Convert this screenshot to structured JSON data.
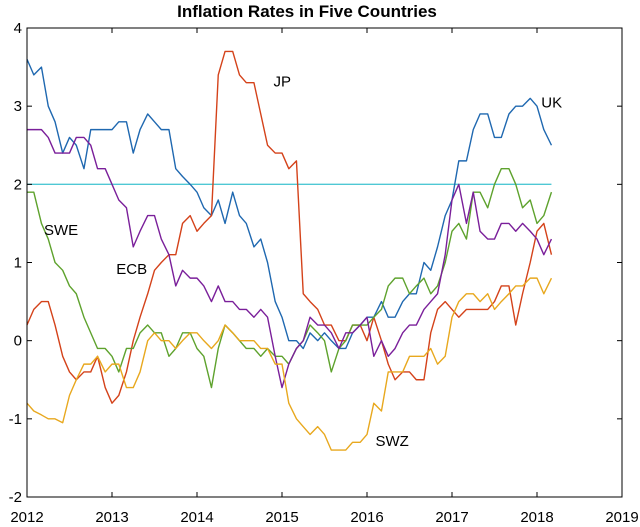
{
  "chart_data": {
    "type": "line",
    "title": "Inflation Rates in Five Countries",
    "xlabel": "",
    "ylabel": "",
    "xlim": [
      2012,
      2019
    ],
    "ylim": [
      -2,
      4
    ],
    "xticks": [
      2012,
      2013,
      2014,
      2015,
      2016,
      2017,
      2018,
      2019
    ],
    "yticks": [
      -2,
      -1,
      0,
      1,
      2,
      3,
      4
    ],
    "grid": false,
    "reference_line": {
      "y": 2,
      "color": "#4fc8d4"
    },
    "series": [
      {
        "name": "UK",
        "color": "#1f68b0",
        "label_at": [
          2018.05,
          2.98
        ],
        "x": [
          2012.0,
          2012.08,
          2012.17,
          2012.25,
          2012.33,
          2012.42,
          2012.5,
          2012.58,
          2012.67,
          2012.75,
          2012.83,
          2012.92,
          2013.0,
          2013.08,
          2013.17,
          2013.25,
          2013.33,
          2013.42,
          2013.5,
          2013.58,
          2013.67,
          2013.75,
          2013.83,
          2013.92,
          2014.0,
          2014.08,
          2014.17,
          2014.25,
          2014.33,
          2014.42,
          2014.5,
          2014.58,
          2014.67,
          2014.75,
          2014.83,
          2014.92,
          2015.0,
          2015.08,
          2015.17,
          2015.25,
          2015.33,
          2015.42,
          2015.5,
          2015.58,
          2015.67,
          2015.75,
          2015.83,
          2015.92,
          2016.0,
          2016.08,
          2016.17,
          2016.25,
          2016.33,
          2016.42,
          2016.5,
          2016.58,
          2016.67,
          2016.75,
          2016.83,
          2016.92,
          2017.0,
          2017.08,
          2017.17,
          2017.25,
          2017.33,
          2017.42,
          2017.5,
          2017.58,
          2017.67,
          2017.75,
          2017.83,
          2017.92,
          2018.0,
          2018.08,
          2018.17
        ],
        "values": [
          3.6,
          3.4,
          3.5,
          3.0,
          2.8,
          2.4,
          2.6,
          2.5,
          2.2,
          2.7,
          2.7,
          2.7,
          2.7,
          2.8,
          2.8,
          2.4,
          2.7,
          2.9,
          2.8,
          2.7,
          2.7,
          2.2,
          2.1,
          2.0,
          1.9,
          1.7,
          1.6,
          1.8,
          1.5,
          1.9,
          1.6,
          1.5,
          1.2,
          1.3,
          1.0,
          0.5,
          0.3,
          0.0,
          0.0,
          -0.1,
          0.1,
          0.0,
          0.1,
          0.0,
          -0.1,
          -0.1,
          0.1,
          0.2,
          0.3,
          0.3,
          0.5,
          0.3,
          0.3,
          0.5,
          0.6,
          0.6,
          1.0,
          0.9,
          1.2,
          1.6,
          1.8,
          2.3,
          2.3,
          2.7,
          2.9,
          2.9,
          2.6,
          2.6,
          2.9,
          3.0,
          3.0,
          3.1,
          3.0,
          2.7,
          2.5
        ]
      },
      {
        "name": "JP",
        "color": "#d4421a",
        "label_at": [
          2014.9,
          3.25
        ],
        "x": [
          2012.0,
          2012.08,
          2012.17,
          2012.25,
          2012.33,
          2012.42,
          2012.5,
          2012.58,
          2012.67,
          2012.75,
          2012.83,
          2012.92,
          2013.0,
          2013.08,
          2013.17,
          2013.25,
          2013.33,
          2013.42,
          2013.5,
          2013.58,
          2013.67,
          2013.75,
          2013.83,
          2013.92,
          2014.0,
          2014.08,
          2014.17,
          2014.25,
          2014.33,
          2014.42,
          2014.5,
          2014.58,
          2014.67,
          2014.75,
          2014.83,
          2014.92,
          2015.0,
          2015.08,
          2015.17,
          2015.25,
          2015.33,
          2015.42,
          2015.5,
          2015.58,
          2015.67,
          2015.75,
          2015.83,
          2015.92,
          2016.0,
          2016.08,
          2016.17,
          2016.25,
          2016.33,
          2016.42,
          2016.5,
          2016.58,
          2016.67,
          2016.75,
          2016.83,
          2016.92,
          2017.0,
          2017.08,
          2017.17,
          2017.25,
          2017.33,
          2017.42,
          2017.5,
          2017.58,
          2017.67,
          2017.75,
          2017.83,
          2017.92,
          2018.0,
          2018.08,
          2018.17
        ],
        "values": [
          0.2,
          0.4,
          0.5,
          0.5,
          0.2,
          -0.2,
          -0.4,
          -0.5,
          -0.4,
          -0.4,
          -0.2,
          -0.6,
          -0.8,
          -0.7,
          -0.4,
          0.0,
          0.3,
          0.6,
          0.9,
          1.0,
          1.1,
          1.1,
          1.5,
          1.6,
          1.4,
          1.5,
          1.6,
          3.4,
          3.7,
          3.7,
          3.4,
          3.3,
          3.3,
          2.9,
          2.5,
          2.4,
          2.4,
          2.2,
          2.3,
          0.6,
          0.5,
          0.4,
          0.2,
          0.2,
          0.0,
          0.0,
          0.2,
          0.2,
          0.0,
          0.3,
          0.0,
          -0.3,
          -0.5,
          -0.4,
          -0.4,
          -0.5,
          -0.5,
          0.1,
          0.4,
          0.5,
          0.4,
          0.3,
          0.4,
          0.4,
          0.4,
          0.4,
          0.5,
          0.7,
          0.7,
          0.2,
          0.6,
          1.0,
          1.4,
          1.5,
          1.1
        ]
      },
      {
        "name": "SWE",
        "color": "#5ea22d",
        "label_at": [
          2012.2,
          1.35
        ],
        "x": [
          2012.0,
          2012.08,
          2012.17,
          2012.25,
          2012.33,
          2012.42,
          2012.5,
          2012.58,
          2012.67,
          2012.75,
          2012.83,
          2012.92,
          2013.0,
          2013.08,
          2013.17,
          2013.25,
          2013.33,
          2013.42,
          2013.5,
          2013.58,
          2013.67,
          2013.75,
          2013.83,
          2013.92,
          2014.0,
          2014.08,
          2014.17,
          2014.25,
          2014.33,
          2014.42,
          2014.5,
          2014.58,
          2014.67,
          2014.75,
          2014.83,
          2014.92,
          2015.0,
          2015.08,
          2015.17,
          2015.25,
          2015.33,
          2015.42,
          2015.5,
          2015.58,
          2015.67,
          2015.75,
          2015.83,
          2015.92,
          2016.0,
          2016.08,
          2016.17,
          2016.25,
          2016.33,
          2016.42,
          2016.5,
          2016.58,
          2016.67,
          2016.75,
          2016.83,
          2016.92,
          2017.0,
          2017.08,
          2017.17,
          2017.25,
          2017.33,
          2017.42,
          2017.5,
          2017.58,
          2017.67,
          2017.75,
          2017.83,
          2017.92,
          2018.0,
          2018.08,
          2018.17
        ],
        "values": [
          1.9,
          1.9,
          1.5,
          1.3,
          1.0,
          0.9,
          0.7,
          0.6,
          0.3,
          0.1,
          -0.1,
          -0.1,
          -0.2,
          -0.4,
          -0.1,
          -0.1,
          0.1,
          0.2,
          0.1,
          0.1,
          -0.2,
          -0.1,
          0.1,
          0.1,
          -0.1,
          -0.2,
          -0.6,
          -0.1,
          0.2,
          0.1,
          0.0,
          -0.1,
          -0.1,
          -0.2,
          -0.1,
          -0.2,
          -0.2,
          -0.3,
          -0.1,
          0.0,
          0.2,
          0.1,
          0.0,
          -0.4,
          -0.1,
          0.0,
          0.2,
          0.2,
          0.2,
          0.3,
          0.4,
          0.7,
          0.8,
          0.8,
          0.6,
          0.7,
          0.8,
          0.6,
          0.7,
          1.0,
          1.4,
          1.5,
          1.3,
          1.9,
          1.9,
          1.7,
          2.0,
          2.2,
          2.2,
          2.0,
          1.7,
          1.8,
          1.5,
          1.6,
          1.9
        ]
      },
      {
        "name": "ECB",
        "color": "#7a1f9a",
        "label_at": [
          2013.05,
          0.85
        ],
        "x": [
          2012.0,
          2012.08,
          2012.17,
          2012.25,
          2012.33,
          2012.42,
          2012.5,
          2012.58,
          2012.67,
          2012.75,
          2012.83,
          2012.92,
          2013.0,
          2013.08,
          2013.17,
          2013.25,
          2013.33,
          2013.42,
          2013.5,
          2013.58,
          2013.67,
          2013.75,
          2013.83,
          2013.92,
          2014.0,
          2014.08,
          2014.17,
          2014.25,
          2014.33,
          2014.42,
          2014.5,
          2014.58,
          2014.67,
          2014.75,
          2014.83,
          2014.92,
          2015.0,
          2015.08,
          2015.17,
          2015.25,
          2015.33,
          2015.42,
          2015.5,
          2015.58,
          2015.67,
          2015.75,
          2015.83,
          2015.92,
          2016.0,
          2016.08,
          2016.17,
          2016.25,
          2016.33,
          2016.42,
          2016.5,
          2016.58,
          2016.67,
          2016.75,
          2016.83,
          2016.92,
          2017.0,
          2017.08,
          2017.17,
          2017.25,
          2017.33,
          2017.42,
          2017.5,
          2017.58,
          2017.67,
          2017.75,
          2017.83,
          2017.92,
          2018.0,
          2018.08,
          2018.17
        ],
        "values": [
          2.7,
          2.7,
          2.7,
          2.6,
          2.4,
          2.4,
          2.4,
          2.6,
          2.6,
          2.5,
          2.2,
          2.2,
          2.0,
          1.8,
          1.7,
          1.2,
          1.4,
          1.6,
          1.6,
          1.3,
          1.1,
          0.7,
          0.9,
          0.8,
          0.8,
          0.7,
          0.5,
          0.7,
          0.5,
          0.5,
          0.4,
          0.4,
          0.3,
          0.4,
          0.3,
          -0.2,
          -0.6,
          -0.3,
          -0.1,
          0.0,
          0.3,
          0.2,
          0.2,
          0.1,
          -0.1,
          0.1,
          0.1,
          0.2,
          0.3,
          -0.2,
          0.0,
          -0.2,
          -0.1,
          0.1,
          0.2,
          0.2,
          0.4,
          0.5,
          0.6,
          1.1,
          1.8,
          2.0,
          1.5,
          1.9,
          1.4,
          1.3,
          1.3,
          1.5,
          1.5,
          1.4,
          1.5,
          1.4,
          1.3,
          1.1,
          1.3
        ]
      },
      {
        "name": "SWZ",
        "color": "#e8a81e",
        "label_at": [
          2016.1,
          -1.35
        ],
        "x": [
          2012.0,
          2012.08,
          2012.17,
          2012.25,
          2012.33,
          2012.42,
          2012.5,
          2012.58,
          2012.67,
          2012.75,
          2012.83,
          2012.92,
          2013.0,
          2013.08,
          2013.17,
          2013.25,
          2013.33,
          2013.42,
          2013.5,
          2013.58,
          2013.67,
          2013.75,
          2013.83,
          2013.92,
          2014.0,
          2014.08,
          2014.17,
          2014.25,
          2014.33,
          2014.42,
          2014.5,
          2014.58,
          2014.67,
          2014.75,
          2014.83,
          2014.92,
          2015.0,
          2015.08,
          2015.17,
          2015.25,
          2015.33,
          2015.42,
          2015.5,
          2015.58,
          2015.67,
          2015.75,
          2015.83,
          2015.92,
          2016.0,
          2016.08,
          2016.17,
          2016.25,
          2016.33,
          2016.42,
          2016.5,
          2016.58,
          2016.67,
          2016.75,
          2016.83,
          2016.92,
          2017.0,
          2017.08,
          2017.17,
          2017.25,
          2017.33,
          2017.42,
          2017.5,
          2017.58,
          2017.67,
          2017.75,
          2017.83,
          2017.92,
          2018.0,
          2018.08,
          2018.17
        ],
        "values": [
          -0.8,
          -0.9,
          -0.95,
          -1.0,
          -1.0,
          -1.05,
          -0.7,
          -0.5,
          -0.3,
          -0.3,
          -0.2,
          -0.4,
          -0.3,
          -0.3,
          -0.6,
          -0.6,
          -0.4,
          0.0,
          0.1,
          0.0,
          0.0,
          -0.1,
          0.0,
          0.1,
          0.1,
          0.0,
          -0.1,
          0.0,
          0.2,
          0.1,
          0.0,
          0.0,
          0.0,
          -0.1,
          -0.1,
          -0.3,
          -0.3,
          -0.8,
          -1.0,
          -1.1,
          -1.2,
          -1.1,
          -1.2,
          -1.4,
          -1.4,
          -1.4,
          -1.3,
          -1.3,
          -1.2,
          -0.8,
          -0.9,
          -0.4,
          -0.4,
          -0.4,
          -0.2,
          -0.2,
          -0.2,
          -0.1,
          -0.3,
          -0.2,
          0.3,
          0.5,
          0.6,
          0.6,
          0.5,
          0.6,
          0.4,
          0.5,
          0.6,
          0.7,
          0.7,
          0.8,
          0.8,
          0.6,
          0.8
        ]
      }
    ]
  }
}
